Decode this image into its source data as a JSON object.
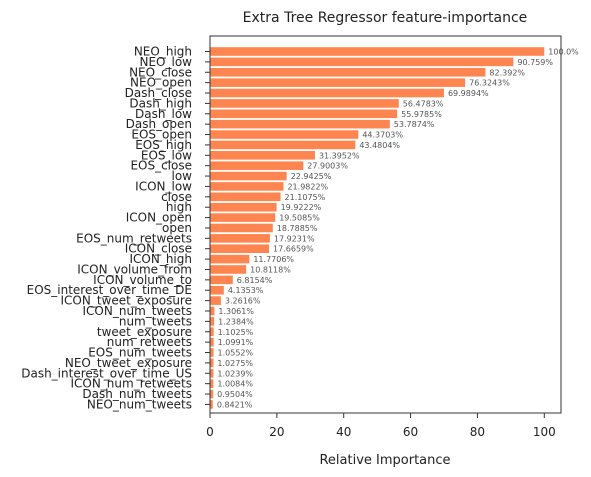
{
  "chart_data": {
    "type": "bar",
    "orientation": "horizontal",
    "title": "Extra Tree Regressor feature-importance",
    "xlabel": "Relative Importance",
    "ylabel": "",
    "xlim": [
      0,
      105
    ],
    "xticks": [
      0,
      20,
      40,
      60,
      80,
      100
    ],
    "bar_color": "#ff8550",
    "grid": false,
    "categories": [
      "NEO_high",
      "NEO_low",
      "NEO_close",
      "NEO_open",
      "Dash_close",
      "Dash_high",
      "Dash_low",
      "Dash_open",
      "EOS_open",
      "EOS_high",
      "EOS_low",
      "EOS_close",
      "low",
      "ICON_low",
      "close",
      "high",
      "ICON_open",
      "open",
      "EOS_num_retweets",
      "ICON_close",
      "ICON_high",
      "ICON_volume_from",
      "ICON_volume_to",
      "EOS_interest_over_time_DE",
      "ICON_tweet_exposure",
      "ICON_num_tweets",
      "num_tweets",
      "tweet_exposure",
      "num_retweets",
      "EOS_num_tweets",
      "NEO_tweet_exposure",
      "Dash_interest_over_time_US",
      "ICON_num_retweets",
      "Dash_num_tweets",
      "NEO_num_tweets"
    ],
    "values": [
      100.0,
      90.759,
      82.392,
      76.3243,
      69.9894,
      56.4783,
      55.9785,
      53.7874,
      44.3703,
      43.4804,
      31.3952,
      27.9003,
      22.9425,
      21.9822,
      21.1075,
      19.9222,
      19.5085,
      18.7885,
      17.9231,
      17.6659,
      11.7706,
      10.8118,
      6.8154,
      4.1353,
      3.2616,
      1.3061,
      1.2384,
      1.1025,
      1.0991,
      1.0552,
      1.0275,
      1.0239,
      1.0084,
      0.9504,
      0.8421
    ],
    "labels": [
      "100.0%",
      "90.759%",
      "82.392%",
      "76.3243%",
      "69.9894%",
      "56.4783%",
      "55.9785%",
      "53.7874%",
      "44.3703%",
      "43.4804%",
      "31.3952%",
      "27.9003%",
      "22.9425%",
      "21.9822%",
      "21.1075%",
      "19.9222%",
      "19.5085%",
      "18.7885%",
      "17.9231%",
      "17.6659%",
      "11.7706%",
      "10.8118%",
      "6.8154%",
      "4.1353%",
      "3.2616%",
      "1.3061%",
      "1.2384%",
      "1.1025%",
      "1.0991%",
      "1.0552%",
      "1.0275%",
      "1.0239%",
      "1.0084%",
      "0.9504%",
      "0.8421%"
    ]
  }
}
